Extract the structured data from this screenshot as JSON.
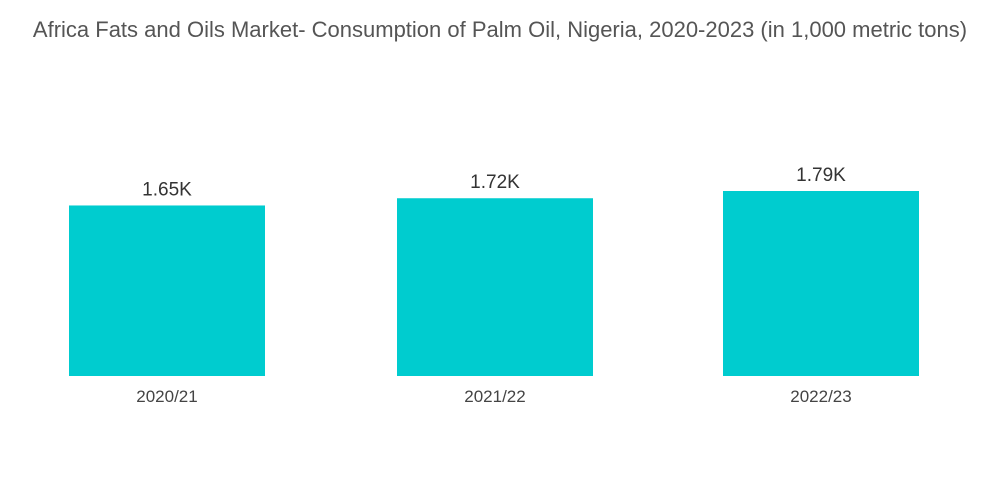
{
  "chart_data": {
    "type": "bar",
    "title": "Africa Fats and Oils Market- Consumption of Palm Oil, Nigeria, 2020-2023 (in 1,000 metric tons)",
    "categories": [
      "2020/21",
      "2021/22",
      "2022/23"
    ],
    "values": [
      1650,
      1720,
      1790
    ],
    "data_labels": [
      "1.65K",
      "1.72K",
      "1.79K"
    ],
    "xlabel": "",
    "ylabel": "",
    "ylim": [
      0,
      1790
    ],
    "grid": false,
    "legend": "none",
    "bar_color": "#00cccf"
  }
}
